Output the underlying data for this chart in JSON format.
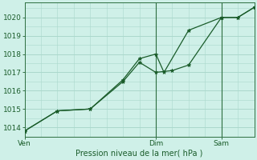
{
  "xlabel": "Pression niveau de la mer( hPa )",
  "background_color": "#cff0e8",
  "grid_color": "#aad8cc",
  "line_color": "#1a5c2a",
  "vline_color": "#2d6e40",
  "ylim": [
    1013.5,
    1020.8
  ],
  "yticks": [
    1014,
    1015,
    1016,
    1017,
    1018,
    1019,
    1020
  ],
  "xtick_labels": [
    "Ven",
    "Dim",
    "Sam"
  ],
  "xtick_positions": [
    0,
    8,
    12
  ],
  "xmin": 0,
  "xmax": 14,
  "vline_positions": [
    8,
    12
  ],
  "line1_x": [
    0,
    2,
    4,
    6,
    7,
    8,
    9,
    10,
    12,
    13,
    14
  ],
  "line1_y": [
    1013.8,
    1014.9,
    1015.0,
    1016.5,
    1017.55,
    1017.0,
    1017.1,
    1017.4,
    1020.0,
    1020.0,
    1020.55
  ],
  "line2_x": [
    0,
    2,
    4,
    6,
    7,
    8,
    8.5,
    10,
    12,
    13,
    14
  ],
  "line2_y": [
    1013.8,
    1014.9,
    1015.0,
    1016.6,
    1017.75,
    1018.0,
    1017.0,
    1019.3,
    1020.0,
    1020.0,
    1020.55
  ]
}
